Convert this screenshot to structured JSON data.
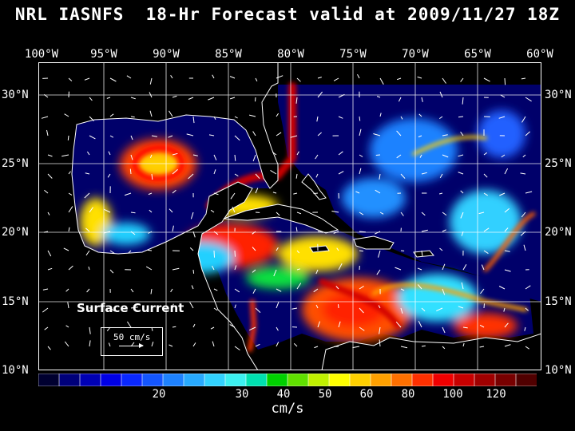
{
  "title": "NRL IASNFS  18-Hr Forecast valid at 2009/11/27 18Z",
  "lon_labels": [
    "100°W",
    "95°W",
    "90°W",
    "85°W",
    "80°W",
    "75°W",
    "70°W",
    "65°W",
    "60°W"
  ],
  "lat_labels": [
    "30°N",
    "25°N",
    "20°N",
    "15°N",
    "10°N"
  ],
  "legend": {
    "title": "Surface Current",
    "scale_label": "50 cm/s"
  },
  "colorbar": {
    "unit": "cm/s",
    "labels": [
      "20",
      "30",
      "40",
      "50",
      "60",
      "80",
      "100",
      "120"
    ],
    "colors": [
      "#000030",
      "#00007a",
      "#0000b4",
      "#0000e6",
      "#0a28ff",
      "#1456ff",
      "#1e82ff",
      "#28aaff",
      "#32d2ff",
      "#3cf0f0",
      "#00e0b0",
      "#00d000",
      "#60e000",
      "#c0f000",
      "#ffff00",
      "#ffd000",
      "#ffa000",
      "#ff7000",
      "#ff3000",
      "#f00000",
      "#c80000",
      "#a00000",
      "#780000",
      "#500000"
    ]
  },
  "colors": {
    "background": "#000000",
    "deep_water": "#00005a",
    "coast": "#ffffff"
  }
}
